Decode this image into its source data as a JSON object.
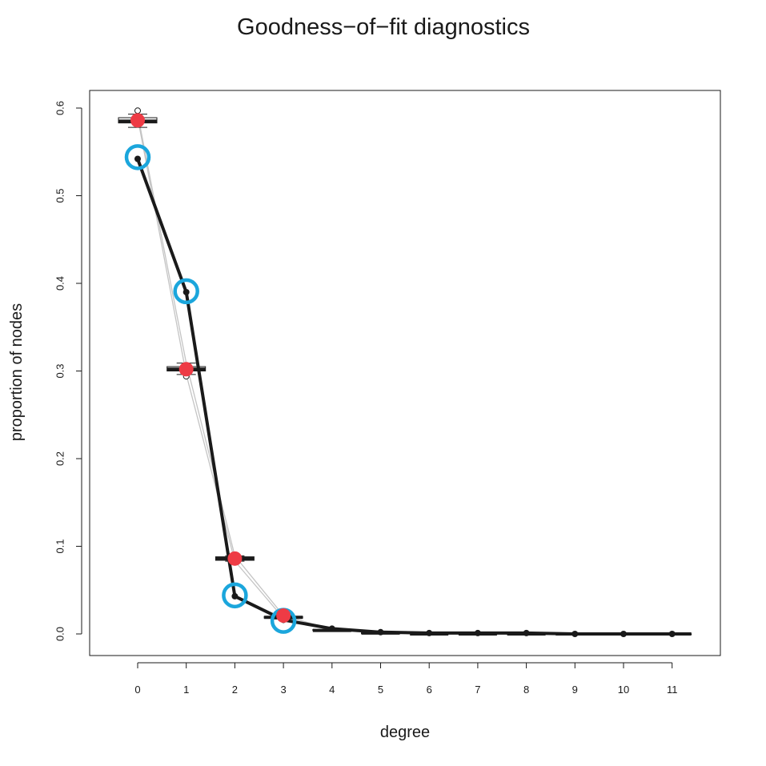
{
  "chart_data": {
    "type": "line",
    "title": "Goodness−of−fit diagnostics",
    "xlabel": "degree",
    "ylabel": "proportion of nodes",
    "x": [
      0,
      1,
      2,
      3,
      4,
      5,
      6,
      7,
      8,
      9,
      10,
      11
    ],
    "xlim": [
      -1,
      12
    ],
    "ylim": [
      0,
      0.6
    ],
    "yticks": [
      0.0,
      0.1,
      0.2,
      0.3,
      0.4,
      0.5,
      0.6
    ],
    "ytick_labels": [
      "0.0",
      "0.1",
      "0.2",
      "0.3",
      "0.4",
      "0.5",
      "0.6"
    ],
    "grid": false,
    "legend": "none",
    "boxplots": [
      {
        "x": 0,
        "min": 0.578,
        "q1": 0.583,
        "median": 0.585,
        "q3": 0.589,
        "max": 0.593,
        "outliers": [
          0.597
        ]
      },
      {
        "x": 1,
        "min": 0.296,
        "q1": 0.3,
        "median": 0.302,
        "q3": 0.305,
        "max": 0.309,
        "outliers": [
          0.294
        ]
      },
      {
        "x": 2,
        "min": 0.083,
        "q1": 0.084,
        "median": 0.086,
        "q3": 0.088,
        "max": 0.089,
        "outliers": []
      },
      {
        "x": 3,
        "min": 0.017,
        "q1": 0.018,
        "median": 0.019,
        "q3": 0.02,
        "max": 0.021,
        "outliers": []
      },
      {
        "x": 4,
        "min": 0.003,
        "q1": 0.004,
        "median": 0.004,
        "q3": 0.005,
        "max": 0.005,
        "outliers": []
      },
      {
        "x": 5,
        "min": 0.0,
        "q1": 0.0005,
        "median": 0.001,
        "q3": 0.0015,
        "max": 0.002,
        "outliers": []
      },
      {
        "x": 6,
        "min": 0.0,
        "q1": 0.0,
        "median": 0.0,
        "q3": 0.001,
        "max": 0.001,
        "outliers": []
      },
      {
        "x": 7,
        "min": 0.0,
        "q1": 0.0,
        "median": 0.0,
        "q3": 0.0005,
        "max": 0.001,
        "outliers": []
      },
      {
        "x": 8,
        "min": 0.0,
        "q1": 0.0,
        "median": 0.0,
        "q3": 0.0005,
        "max": 0.001,
        "outliers": []
      },
      {
        "x": 9,
        "min": 0.0,
        "q1": 0.0,
        "median": 0.0,
        "q3": 0.0,
        "max": 0.0,
        "outliers": []
      },
      {
        "x": 10,
        "min": 0.0,
        "q1": 0.0,
        "median": 0.0,
        "q3": 0.0,
        "max": 0.0,
        "outliers": []
      },
      {
        "x": 11,
        "min": 0.0,
        "q1": 0.0,
        "median": 0.0,
        "q3": 0.0,
        "max": 0.0,
        "outliers": []
      }
    ],
    "grey_lines": [
      [
        0.589,
        0.296,
        0.083,
        0.018,
        0.004,
        0.001,
        0.0,
        0.0,
        0.0,
        0.0,
        0.0,
        0.0
      ],
      [
        0.593,
        0.309,
        0.089,
        0.021,
        0.005,
        0.002,
        0.001,
        0.001,
        0.001,
        0.0,
        0.0,
        0.0
      ]
    ],
    "observed": {
      "values": [
        0.542,
        0.39,
        0.043,
        0.016,
        0.006,
        0.002,
        0.001,
        0.001,
        0.001,
        0.0,
        0.0,
        0.0
      ],
      "line_color": "#1a1a1a",
      "marker_color": "#1a1a1a"
    },
    "highlight_circles": {
      "color": "#1ba6dc",
      "points": [
        {
          "x": 0,
          "y": 0.544
        },
        {
          "x": 1,
          "y": 0.391
        },
        {
          "x": 2,
          "y": 0.044
        },
        {
          "x": 3,
          "y": 0.015
        }
      ]
    },
    "red_points": {
      "color": "#ee3b45",
      "points": [
        {
          "x": 0,
          "y": 0.586
        },
        {
          "x": 1,
          "y": 0.302
        },
        {
          "x": 2,
          "y": 0.086
        },
        {
          "x": 3,
          "y": 0.021
        }
      ]
    }
  }
}
